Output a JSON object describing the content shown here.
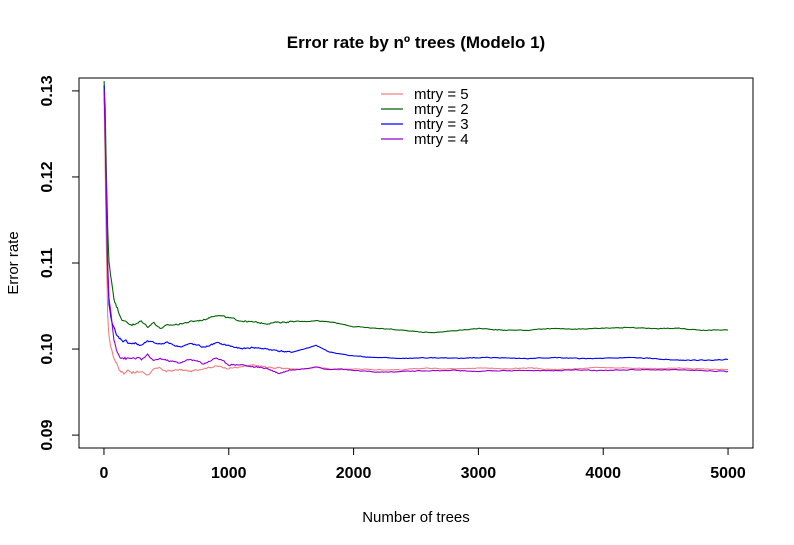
{
  "chart_data": {
    "type": "line",
    "title": "Error rate by nº trees (Modelo 1)",
    "xlabel": "Number of trees",
    "ylabel": "Error rate",
    "xlim": [
      -200,
      5200
    ],
    "ylim": [
      0.0885,
      0.1315
    ],
    "xticks": [
      0,
      1000,
      2000,
      3000,
      4000,
      5000
    ],
    "xtick_labels": [
      "0",
      "1000",
      "2000",
      "3000",
      "4000",
      "5000"
    ],
    "yticks": [
      0.09,
      0.1,
      0.11,
      0.12,
      0.13
    ],
    "ytick_labels": [
      "0.09",
      "0.10",
      "0.11",
      "0.12",
      "0.13"
    ],
    "legend_position": "top-center",
    "grid": false,
    "series": [
      {
        "name": "mtry = 5",
        "color": "#f08080",
        "x": [
          1,
          10,
          20,
          30,
          40,
          60,
          80,
          100,
          130,
          160,
          200,
          250,
          300,
          350,
          400,
          450,
          500,
          600,
          700,
          800,
          900,
          1000,
          1100,
          1200,
          1300,
          1400,
          1500,
          1600,
          1700,
          1800,
          1900,
          2000,
          2200,
          2400,
          2600,
          2800,
          3000,
          3200,
          3400,
          3600,
          3800,
          4000,
          4200,
          4400,
          4600,
          4800,
          5000
        ],
        "y": [
          0.129,
          0.121,
          0.111,
          0.104,
          0.1015,
          0.1,
          0.099,
          0.0985,
          0.0975,
          0.0972,
          0.0976,
          0.0972,
          0.0974,
          0.097,
          0.0976,
          0.0978,
          0.0974,
          0.0976,
          0.0974,
          0.0978,
          0.098,
          0.0978,
          0.0979,
          0.0981,
          0.0979,
          0.0978,
          0.0977,
          0.0977,
          0.0979,
          0.0977,
          0.0976,
          0.0977,
          0.0976,
          0.0976,
          0.0978,
          0.0977,
          0.0978,
          0.0977,
          0.0978,
          0.0976,
          0.0977,
          0.0979,
          0.0978,
          0.0977,
          0.0978,
          0.0977,
          0.0976
        ]
      },
      {
        "name": "mtry = 2",
        "color": "#006400",
        "x": [
          1,
          10,
          20,
          30,
          40,
          60,
          80,
          100,
          130,
          160,
          200,
          250,
          300,
          350,
          400,
          450,
          500,
          600,
          700,
          800,
          900,
          1000,
          1100,
          1200,
          1300,
          1400,
          1500,
          1600,
          1700,
          1800,
          1900,
          2000,
          2200,
          2400,
          2600,
          2800,
          3000,
          3200,
          3400,
          3600,
          3800,
          4000,
          4200,
          4400,
          4600,
          4800,
          5000
        ],
        "y": [
          0.131,
          0.128,
          0.12,
          0.114,
          0.11,
          0.108,
          0.106,
          0.105,
          0.104,
          0.1032,
          0.103,
          0.1028,
          0.1032,
          0.1026,
          0.1031,
          0.1024,
          0.1027,
          0.1029,
          0.1032,
          0.1034,
          0.104,
          0.1036,
          0.1033,
          0.1031,
          0.103,
          0.1031,
          0.1032,
          0.1032,
          0.1033,
          0.1032,
          0.1029,
          0.1026,
          0.1024,
          0.1022,
          0.1019,
          0.1021,
          0.1024,
          0.1022,
          0.1022,
          0.1024,
          0.1023,
          0.1024,
          0.1025,
          0.1024,
          0.1024,
          0.1022,
          0.1022
        ]
      },
      {
        "name": "mtry = 3",
        "color": "#0000ff",
        "x": [
          1,
          10,
          20,
          30,
          40,
          60,
          80,
          100,
          130,
          160,
          200,
          250,
          300,
          350,
          400,
          450,
          500,
          600,
          700,
          800,
          900,
          1000,
          1100,
          1200,
          1300,
          1400,
          1500,
          1600,
          1700,
          1800,
          1900,
          2000,
          2200,
          2400,
          2600,
          2800,
          3000,
          3200,
          3400,
          3600,
          3800,
          4000,
          4200,
          4400,
          4600,
          4800,
          5000
        ],
        "y": [
          0.1305,
          0.125,
          0.116,
          0.109,
          0.105,
          0.1035,
          0.1025,
          0.1015,
          0.1012,
          0.101,
          0.1008,
          0.1006,
          0.1004,
          0.1009,
          0.1007,
          0.1006,
          0.1008,
          0.1003,
          0.1006,
          0.1002,
          0.1007,
          0.1004,
          0.1,
          0.1002,
          0.1,
          0.0998,
          0.0996,
          0.1,
          0.1004,
          0.0997,
          0.0994,
          0.0992,
          0.099,
          0.0989,
          0.099,
          0.0989,
          0.099,
          0.099,
          0.0989,
          0.099,
          0.0989,
          0.0989,
          0.099,
          0.0989,
          0.0987,
          0.0987,
          0.0988
        ]
      },
      {
        "name": "mtry = 4",
        "color": "#9400d3",
        "x": [
          1,
          10,
          20,
          30,
          40,
          60,
          80,
          100,
          130,
          160,
          200,
          250,
          300,
          350,
          400,
          450,
          500,
          600,
          700,
          800,
          900,
          1000,
          1100,
          1200,
          1300,
          1400,
          1500,
          1600,
          1700,
          1800,
          1900,
          2000,
          2200,
          2400,
          2600,
          2800,
          3000,
          3200,
          3400,
          3600,
          3800,
          4000,
          4200,
          4400,
          4600,
          4800,
          5000
        ],
        "y": [
          0.13,
          0.126,
          0.117,
          0.11,
          0.106,
          0.1035,
          0.101,
          0.1,
          0.0992,
          0.099,
          0.0988,
          0.099,
          0.0987,
          0.0993,
          0.0986,
          0.0989,
          0.0987,
          0.0984,
          0.0988,
          0.0983,
          0.099,
          0.0982,
          0.0982,
          0.0979,
          0.0978,
          0.0972,
          0.0976,
          0.0977,
          0.0979,
          0.0976,
          0.0977,
          0.0975,
          0.0973,
          0.0974,
          0.0975,
          0.0975,
          0.0974,
          0.0975,
          0.0975,
          0.0975,
          0.0976,
          0.0975,
          0.0976,
          0.0976,
          0.0976,
          0.0975,
          0.0974
        ]
      }
    ]
  }
}
